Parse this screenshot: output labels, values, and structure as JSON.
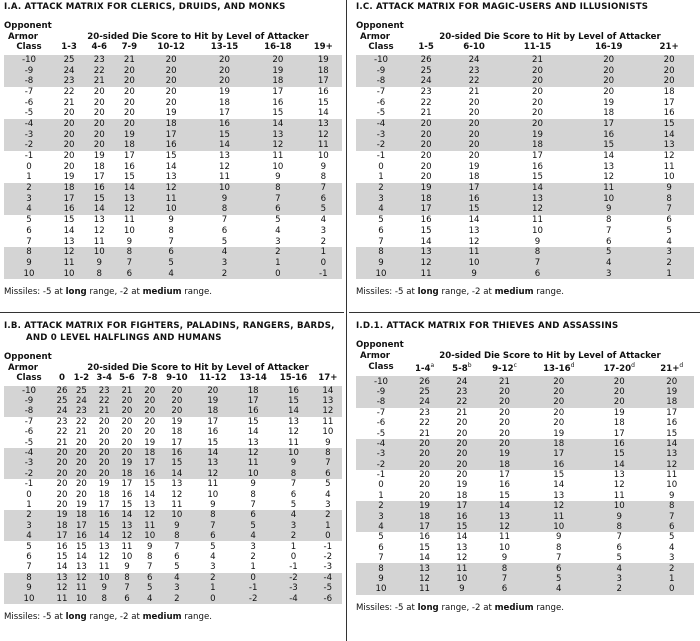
{
  "tables": [
    {
      "title": "I.A. ATTACK MATRIX FOR CLERICS, DRUIDS, AND MONKS",
      "header_lines": [
        "Opponent",
        "Armor",
        "Class"
      ],
      "span_label": "20-sided Die Score to Hit by Level of Attacker",
      "columns": [
        {
          "text": "1-3"
        },
        {
          "text": "4-6"
        },
        {
          "text": "7-9"
        },
        {
          "text": "10-12"
        },
        {
          "text": "13-15"
        },
        {
          "text": "16-18"
        },
        {
          "text": "19+"
        }
      ],
      "rows": [
        [
          -10,
          25,
          23,
          21,
          20,
          20,
          20,
          19
        ],
        [
          -9,
          24,
          22,
          20,
          20,
          20,
          19,
          18
        ],
        [
          -8,
          23,
          21,
          20,
          20,
          20,
          18,
          17
        ],
        [
          -7,
          22,
          20,
          20,
          20,
          19,
          17,
          16
        ],
        [
          -6,
          21,
          20,
          20,
          20,
          18,
          16,
          15
        ],
        [
          -5,
          20,
          20,
          20,
          19,
          17,
          15,
          14
        ],
        [
          -4,
          20,
          20,
          20,
          18,
          16,
          14,
          13
        ],
        [
          -3,
          20,
          20,
          19,
          17,
          15,
          13,
          12
        ],
        [
          -2,
          20,
          20,
          18,
          16,
          14,
          12,
          11
        ],
        [
          -1,
          20,
          19,
          17,
          15,
          13,
          11,
          10
        ],
        [
          0,
          20,
          18,
          16,
          14,
          12,
          10,
          9
        ],
        [
          1,
          19,
          17,
          15,
          13,
          11,
          9,
          8
        ],
        [
          2,
          18,
          16,
          14,
          12,
          10,
          8,
          7
        ],
        [
          3,
          17,
          15,
          13,
          11,
          9,
          7,
          6
        ],
        [
          4,
          16,
          14,
          12,
          10,
          8,
          6,
          5
        ],
        [
          5,
          15,
          13,
          11,
          9,
          7,
          5,
          4
        ],
        [
          6,
          14,
          12,
          10,
          8,
          6,
          4,
          3
        ],
        [
          7,
          13,
          11,
          9,
          7,
          5,
          3,
          2
        ],
        [
          8,
          12,
          10,
          8,
          6,
          4,
          2,
          1
        ],
        [
          9,
          11,
          9,
          7,
          5,
          3,
          1,
          0
        ],
        [
          10,
          10,
          8,
          6,
          4,
          2,
          0,
          -1
        ]
      ],
      "missiles": [
        "Missiles: -5 at ",
        "long",
        " range, -2 at ",
        "medium",
        " range."
      ]
    },
    {
      "title": "I.C. ATTACK MATRIX FOR MAGIC-USERS AND ILLUSIONISTS",
      "header_lines": [
        "Opponent",
        "Armor",
        "Class"
      ],
      "span_label": "20-sided Die Score to Hit by Level of Attacker",
      "columns": [
        {
          "text": "1-5"
        },
        {
          "text": "6-10"
        },
        {
          "text": "11-15"
        },
        {
          "text": "16-19"
        },
        {
          "text": "21+"
        }
      ],
      "rows": [
        [
          -10,
          26,
          24,
          21,
          20,
          20
        ],
        [
          -9,
          25,
          23,
          20,
          20,
          20
        ],
        [
          -8,
          24,
          22,
          20,
          20,
          20
        ],
        [
          -7,
          23,
          21,
          20,
          20,
          18
        ],
        [
          -6,
          22,
          20,
          20,
          19,
          17
        ],
        [
          -5,
          21,
          20,
          20,
          18,
          16
        ],
        [
          -4,
          20,
          20,
          20,
          17,
          15
        ],
        [
          -3,
          20,
          20,
          19,
          16,
          14
        ],
        [
          -2,
          20,
          20,
          18,
          15,
          13
        ],
        [
          -1,
          20,
          20,
          17,
          14,
          12
        ],
        [
          0,
          20,
          19,
          16,
          13,
          11
        ],
        [
          1,
          20,
          18,
          15,
          12,
          10
        ],
        [
          2,
          19,
          17,
          14,
          11,
          9
        ],
        [
          3,
          18,
          16,
          13,
          10,
          8
        ],
        [
          4,
          17,
          15,
          12,
          9,
          7
        ],
        [
          5,
          16,
          14,
          11,
          8,
          6
        ],
        [
          6,
          15,
          13,
          10,
          7,
          5
        ],
        [
          7,
          14,
          12,
          9,
          6,
          4
        ],
        [
          8,
          13,
          11,
          8,
          5,
          3
        ],
        [
          9,
          12,
          10,
          7,
          4,
          2
        ],
        [
          10,
          11,
          9,
          6,
          3,
          1
        ]
      ],
      "missiles": [
        "Missiles: -5 at ",
        "long",
        " range, -2 at ",
        "medium",
        " range."
      ]
    },
    {
      "title": "I.B. ATTACK MATRIX FOR FIGHTERS, PALADINS, RANGERS, BARDS, AND 0 LEVEL HALFLINGS AND HUMANS",
      "header_lines": [
        "Opponent",
        "Armor",
        "Class"
      ],
      "span_label": "20-sided Die Score to Hit by Level of Attacker",
      "columns": [
        {
          "text": "0"
        },
        {
          "text": "1-2"
        },
        {
          "text": "3-4"
        },
        {
          "text": "5-6"
        },
        {
          "text": "7-8"
        },
        {
          "text": "9-10"
        },
        {
          "text": "11-12"
        },
        {
          "text": "13-14"
        },
        {
          "text": "15-16"
        },
        {
          "text": "17+"
        }
      ],
      "rows": [
        [
          -10,
          26,
          25,
          23,
          21,
          20,
          20,
          20,
          18,
          16,
          14
        ],
        [
          -9,
          25,
          24,
          22,
          20,
          20,
          20,
          19,
          17,
          15,
          13
        ],
        [
          -8,
          24,
          23,
          21,
          20,
          20,
          20,
          18,
          16,
          14,
          12
        ],
        [
          -7,
          23,
          22,
          20,
          20,
          20,
          19,
          17,
          15,
          13,
          11
        ],
        [
          -6,
          22,
          21,
          20,
          20,
          20,
          18,
          16,
          14,
          12,
          10
        ],
        [
          -5,
          21,
          20,
          20,
          20,
          19,
          17,
          15,
          13,
          11,
          9
        ],
        [
          -4,
          20,
          20,
          20,
          20,
          18,
          16,
          14,
          12,
          10,
          8
        ],
        [
          -3,
          20,
          20,
          20,
          19,
          17,
          15,
          13,
          11,
          9,
          7
        ],
        [
          -2,
          20,
          20,
          20,
          18,
          16,
          14,
          12,
          10,
          8,
          6
        ],
        [
          -1,
          20,
          20,
          19,
          17,
          15,
          13,
          11,
          9,
          7,
          5
        ],
        [
          0,
          20,
          20,
          18,
          16,
          14,
          12,
          10,
          8,
          6,
          4
        ],
        [
          1,
          20,
          19,
          17,
          15,
          13,
          11,
          9,
          7,
          5,
          3
        ],
        [
          2,
          19,
          18,
          16,
          14,
          12,
          10,
          8,
          6,
          4,
          2
        ],
        [
          3,
          18,
          17,
          15,
          13,
          11,
          9,
          7,
          5,
          3,
          1
        ],
        [
          4,
          17,
          16,
          14,
          12,
          10,
          8,
          6,
          4,
          2,
          0
        ],
        [
          5,
          16,
          15,
          13,
          11,
          9,
          7,
          5,
          3,
          1,
          -1
        ],
        [
          6,
          15,
          14,
          12,
          10,
          8,
          6,
          4,
          2,
          0,
          -2
        ],
        [
          7,
          14,
          13,
          11,
          9,
          7,
          5,
          3,
          1,
          -1,
          -3
        ],
        [
          8,
          13,
          12,
          10,
          8,
          6,
          4,
          2,
          0,
          -2,
          -4
        ],
        [
          9,
          12,
          11,
          9,
          7,
          5,
          3,
          1,
          -1,
          -3,
          -5
        ],
        [
          10,
          11,
          10,
          8,
          6,
          4,
          2,
          0,
          -2,
          -4,
          -6
        ]
      ],
      "missiles": [
        "Missiles: -5 at ",
        "long",
        " range, -2 at ",
        "medium",
        " range."
      ]
    },
    {
      "title": "I.D.1. ATTACK MATRIX FOR THIEVES AND ASSASSINS",
      "header_lines": [
        "Opponent",
        "Armor",
        "Class"
      ],
      "span_label": "20-sided Die Score to Hit by Level of Attacker",
      "columns": [
        {
          "text": "1-4",
          "note": "a"
        },
        {
          "text": "5-8",
          "note": "b"
        },
        {
          "text": "9-12",
          "note": "c"
        },
        {
          "text": "13-16",
          "note": "d"
        },
        {
          "text": "17-20",
          "note": "d"
        },
        {
          "text": "21+",
          "note": "d"
        }
      ],
      "rows": [
        [
          -10,
          26,
          24,
          21,
          20,
          20,
          20
        ],
        [
          -9,
          25,
          23,
          20,
          20,
          20,
          19
        ],
        [
          -8,
          24,
          22,
          20,
          20,
          20,
          18
        ],
        [
          -7,
          23,
          21,
          20,
          20,
          19,
          17
        ],
        [
          -6,
          22,
          20,
          20,
          20,
          18,
          16
        ],
        [
          -5,
          21,
          20,
          20,
          19,
          17,
          15
        ],
        [
          -4,
          20,
          20,
          20,
          18,
          16,
          14
        ],
        [
          -3,
          20,
          20,
          19,
          17,
          15,
          13
        ],
        [
          -2,
          20,
          20,
          18,
          16,
          14,
          12
        ],
        [
          -1,
          20,
          20,
          17,
          15,
          13,
          11
        ],
        [
          0,
          20,
          19,
          16,
          14,
          12,
          10
        ],
        [
          1,
          20,
          18,
          15,
          13,
          11,
          9
        ],
        [
          2,
          19,
          17,
          14,
          12,
          10,
          8
        ],
        [
          3,
          18,
          16,
          13,
          11,
          9,
          7
        ],
        [
          4,
          17,
          15,
          12,
          10,
          8,
          6
        ],
        [
          5,
          16,
          14,
          11,
          9,
          7,
          5
        ],
        [
          6,
          15,
          13,
          10,
          8,
          6,
          4
        ],
        [
          7,
          14,
          12,
          9,
          7,
          5,
          3
        ],
        [
          8,
          13,
          11,
          8,
          6,
          4,
          2
        ],
        [
          9,
          12,
          10,
          7,
          5,
          3,
          1
        ],
        [
          10,
          11,
          9,
          6,
          4,
          2,
          0
        ]
      ],
      "missiles": [
        "Missiles: -5 at ",
        "long",
        " range, -2 at ",
        "medium",
        " range."
      ]
    }
  ]
}
